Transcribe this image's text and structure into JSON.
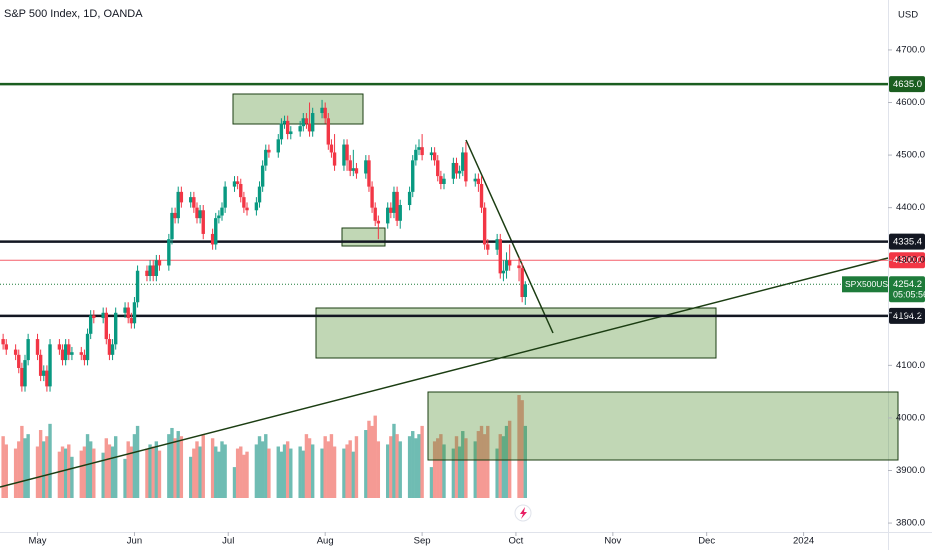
{
  "chart_data": {
    "type": "candlestick",
    "title": "S&P 500 Index, 1D, OANDA",
    "currency": "USD",
    "up_color": "#089981",
    "down_color": "#f23645",
    "volume_up_color": "#6fbcb3",
    "volume_down_color": "#f59a94",
    "ylim": [
      3783,
      4795
    ],
    "yticks": [
      {
        "value": 3800,
        "label": "3800.0"
      },
      {
        "value": 3900,
        "label": "3900.0"
      },
      {
        "value": 4000,
        "label": "4000.0"
      },
      {
        "value": 4100,
        "label": "4100.0"
      },
      {
        "value": 4200,
        "label": "4200.0"
      },
      {
        "value": 4300,
        "label": "4300.0"
      },
      {
        "value": 4400,
        "label": "4400.0"
      },
      {
        "value": 4500,
        "label": "4500.0"
      },
      {
        "value": 4600,
        "label": "4600.0"
      },
      {
        "value": 4700,
        "label": "4700.0"
      }
    ],
    "xlim": [
      "2023-04-19",
      "2024-01-28"
    ],
    "xticks": [
      {
        "value": "2023-05-01",
        "label": "May"
      },
      {
        "value": "2023-06-01",
        "label": "Jun"
      },
      {
        "value": "2023-07-01",
        "label": "Jul"
      },
      {
        "value": "2023-08-01",
        "label": "Aug"
      },
      {
        "value": "2023-09-01",
        "label": "Sep"
      },
      {
        "value": "2023-10-01",
        "label": "Oct"
      },
      {
        "value": "2023-11-01",
        "label": "Nov"
      },
      {
        "value": "2023-12-01",
        "label": "Dec"
      },
      {
        "value": "2024-01-01",
        "label": "2024"
      }
    ],
    "levels": [
      {
        "value": 4635,
        "label": "4635.0",
        "color": "#1b5e20"
      },
      {
        "value": 4335.4,
        "label": "4335.4",
        "color": "#131722"
      },
      {
        "value": 4300,
        "label": "4300.0",
        "color": "#f23645"
      },
      {
        "value": 4194.2,
        "label": "4194.2",
        "color": "#131722"
      }
    ],
    "current": {
      "name": "SPX500USD",
      "value": 4254.2,
      "label": "4254.2",
      "countdown": "05:05:56",
      "color": "#1e7b3a"
    },
    "candles": [
      [
        "2023-04-20",
        4150,
        4160,
        4130,
        4140
      ],
      [
        "2023-04-21",
        4140,
        4150,
        4120,
        4130
      ],
      [
        "2023-04-24",
        4130,
        4140,
        4110,
        4120
      ],
      [
        "2023-04-25",
        4120,
        4130,
        4085,
        4095
      ],
      [
        "2023-04-26",
        4095,
        4105,
        4050,
        4060
      ],
      [
        "2023-04-27",
        4060,
        4120,
        4050,
        4110
      ],
      [
        "2023-04-28",
        4110,
        4160,
        4100,
        4150
      ],
      [
        "2023-05-01",
        4150,
        4160,
        4110,
        4120
      ],
      [
        "2023-05-02",
        4120,
        4130,
        4070,
        4080
      ],
      [
        "2023-05-03",
        4080,
        4100,
        4070,
        4090
      ],
      [
        "2023-05-04",
        4090,
        4100,
        4050,
        4060
      ],
      [
        "2023-05-05",
        4060,
        4150,
        4050,
        4140
      ],
      [
        "2023-05-08",
        4140,
        4150,
        4120,
        4130
      ],
      [
        "2023-05-09",
        4130,
        4140,
        4100,
        4110
      ],
      [
        "2023-05-10",
        4110,
        4150,
        4100,
        4140
      ],
      [
        "2023-05-11",
        4140,
        4150,
        4110,
        4120
      ],
      [
        "2023-05-12",
        4120,
        4135,
        4110,
        4125
      ],
      [
        "2023-05-15",
        4125,
        4135,
        4110,
        4120
      ],
      [
        "2023-05-16",
        4120,
        4130,
        4100,
        4110
      ],
      [
        "2023-05-17",
        4110,
        4170,
        4100,
        4160
      ],
      [
        "2023-05-18",
        4160,
        4205,
        4150,
        4195
      ],
      [
        "2023-05-19",
        4195,
        4205,
        4180,
        4190
      ],
      [
        "2023-05-22",
        4190,
        4210,
        4180,
        4200
      ],
      [
        "2023-05-23",
        4200,
        4210,
        4140,
        4150
      ],
      [
        "2023-05-24",
        4150,
        4160,
        4110,
        4120
      ],
      [
        "2023-05-25",
        4120,
        4150,
        4110,
        4140
      ],
      [
        "2023-05-26",
        4140,
        4210,
        4130,
        4200
      ],
      [
        "2023-05-29",
        4200,
        4220,
        4190,
        4210
      ],
      [
        "2023-05-30",
        4210,
        4220,
        4180,
        4190
      ],
      [
        "2023-05-31",
        4190,
        4200,
        4170,
        4180
      ],
      [
        "2023-06-01",
        4180,
        4230,
        4170,
        4220
      ],
      [
        "2023-06-02",
        4220,
        4290,
        4210,
        4280
      ],
      [
        "2023-06-05",
        4280,
        4290,
        4260,
        4270
      ],
      [
        "2023-06-06",
        4270,
        4300,
        4260,
        4290
      ],
      [
        "2023-06-07",
        4290,
        4300,
        4260,
        4270
      ],
      [
        "2023-06-08",
        4270,
        4310,
        4260,
        4300
      ],
      [
        "2023-06-09",
        4300,
        4310,
        4280,
        4290
      ],
      [
        "2023-06-12",
        4290,
        4350,
        4280,
        4340
      ],
      [
        "2023-06-13",
        4340,
        4400,
        4330,
        4390
      ],
      [
        "2023-06-14",
        4390,
        4400,
        4370,
        4380
      ],
      [
        "2023-06-15",
        4380,
        4440,
        4370,
        4430
      ],
      [
        "2023-06-16",
        4430,
        4440,
        4400,
        4410
      ],
      [
        "2023-06-19",
        4410,
        4430,
        4400,
        4420
      ],
      [
        "2023-06-20",
        4420,
        4430,
        4390,
        4400
      ],
      [
        "2023-06-21",
        4400,
        4410,
        4370,
        4380
      ],
      [
        "2023-06-22",
        4380,
        4405,
        4370,
        4395
      ],
      [
        "2023-06-23",
        4395,
        4405,
        4340,
        4350
      ],
      [
        "2023-06-26",
        4350,
        4360,
        4320,
        4330
      ],
      [
        "2023-06-27",
        4330,
        4390,
        4320,
        4380
      ],
      [
        "2023-06-28",
        4380,
        4395,
        4370,
        4385
      ],
      [
        "2023-06-29",
        4385,
        4410,
        4375,
        4400
      ],
      [
        "2023-06-30",
        4400,
        4450,
        4390,
        4440
      ],
      [
        "2023-07-03",
        4440,
        4460,
        4430,
        4450
      ],
      [
        "2023-07-04",
        4450,
        4460,
        4435,
        4445
      ],
      [
        "2023-07-05",
        4445,
        4455,
        4410,
        4420
      ],
      [
        "2023-07-06",
        4420,
        4430,
        4390,
        4400
      ],
      [
        "2023-07-07",
        4400,
        4410,
        4385,
        4395
      ],
      [
        "2023-07-10",
        4395,
        4420,
        4385,
        4410
      ],
      [
        "2023-07-11",
        4410,
        4450,
        4400,
        4440
      ],
      [
        "2023-07-12",
        4440,
        4490,
        4430,
        4480
      ],
      [
        "2023-07-13",
        4480,
        4520,
        4470,
        4510
      ],
      [
        "2023-07-14",
        4510,
        4520,
        4495,
        4505
      ],
      [
        "2023-07-17",
        4505,
        4540,
        4495,
        4530
      ],
      [
        "2023-07-18",
        4530,
        4570,
        4520,
        4560
      ],
      [
        "2023-07-19",
        4560,
        4575,
        4550,
        4565
      ],
      [
        "2023-07-20",
        4565,
        4575,
        4530,
        4540
      ],
      [
        "2023-07-21",
        4540,
        4555,
        4530,
        4545
      ],
      [
        "2023-07-24",
        4545,
        4565,
        4535,
        4555
      ],
      [
        "2023-07-25",
        4555,
        4580,
        4545,
        4570
      ],
      [
        "2023-07-26",
        4570,
        4580,
        4550,
        4560
      ],
      [
        "2023-07-27",
        4560,
        4600,
        4535,
        4545
      ],
      [
        "2023-07-28",
        4545,
        4590,
        4535,
        4580
      ],
      [
        "2023-07-31",
        4580,
        4605,
        4570,
        4590
      ],
      [
        "2023-08-01",
        4590,
        4600,
        4560,
        4570
      ],
      [
        "2023-08-02",
        4570,
        4580,
        4510,
        4520
      ],
      [
        "2023-08-03",
        4520,
        4530,
        4495,
        4505
      ],
      [
        "2023-08-04",
        4505,
        4540,
        4470,
        4480
      ],
      [
        "2023-08-07",
        4480,
        4530,
        4470,
        4520
      ],
      [
        "2023-08-08",
        4520,
        4530,
        4470,
        4490
      ],
      [
        "2023-08-09",
        4490,
        4500,
        4460,
        4470
      ],
      [
        "2023-08-10",
        4470,
        4510,
        4460,
        4475
      ],
      [
        "2023-08-11",
        4475,
        4485,
        4455,
        4465
      ],
      [
        "2023-08-14",
        4465,
        4500,
        4455,
        4490
      ],
      [
        "2023-08-15",
        4490,
        4500,
        4430,
        4440
      ],
      [
        "2023-08-16",
        4440,
        4450,
        4390,
        4400
      ],
      [
        "2023-08-17",
        4400,
        4410,
        4365,
        4375
      ],
      [
        "2023-08-18",
        4375,
        4385,
        4340,
        4370
      ],
      [
        "2023-08-21",
        4370,
        4410,
        4360,
        4400
      ],
      [
        "2023-08-22",
        4400,
        4410,
        4380,
        4390
      ],
      [
        "2023-08-23",
        4390,
        4440,
        4380,
        4430
      ],
      [
        "2023-08-24",
        4430,
        4440,
        4365,
        4375
      ],
      [
        "2023-08-25",
        4375,
        4415,
        4360,
        4405
      ],
      [
        "2023-08-28",
        4405,
        4440,
        4395,
        4430
      ],
      [
        "2023-08-29",
        4430,
        4500,
        4420,
        4490
      ],
      [
        "2023-08-30",
        4490,
        4520,
        4480,
        4510
      ],
      [
        "2023-08-31",
        4510,
        4530,
        4500,
        4515
      ],
      [
        "2023-09-01",
        4515,
        4540,
        4490,
        4500
      ],
      [
        "2023-09-04",
        4500,
        4515,
        4490,
        4505
      ],
      [
        "2023-09-05",
        4505,
        4515,
        4480,
        4490
      ],
      [
        "2023-09-06",
        4490,
        4500,
        4450,
        4460
      ],
      [
        "2023-09-07",
        4460,
        4470,
        4435,
        4445
      ],
      [
        "2023-09-08",
        4445,
        4465,
        4435,
        4455
      ],
      [
        "2023-09-11",
        4455,
        4495,
        4445,
        4485
      ],
      [
        "2023-09-12",
        4485,
        4495,
        4455,
        4465
      ],
      [
        "2023-09-13",
        4465,
        4480,
        4455,
        4470
      ],
      [
        "2023-09-14",
        4470,
        4515,
        4460,
        4505
      ],
      [
        "2023-09-15",
        4505,
        4525,
        4440,
        4450
      ],
      [
        "2023-09-18",
        4450,
        4465,
        4440,
        4455
      ],
      [
        "2023-09-19",
        4455,
        4465,
        4430,
        4445
      ],
      [
        "2023-09-20",
        4445,
        4460,
        4390,
        4400
      ],
      [
        "2023-09-21",
        4400,
        4410,
        4320,
        4330
      ],
      [
        "2023-09-22",
        4330,
        4340,
        4310,
        4320
      ],
      [
        "2023-09-25",
        4320,
        4350,
        4310,
        4340
      ],
      [
        "2023-09-26",
        4340,
        4350,
        4265,
        4275
      ],
      [
        "2023-09-27",
        4275,
        4300,
        4260,
        4280
      ],
      [
        "2023-09-28",
        4280,
        4315,
        4265,
        4300
      ],
      [
        "2023-09-29",
        4300,
        4330,
        4280,
        4290
      ],
      [
        "2023-10-02",
        4290,
        4305,
        4260,
        4285
      ],
      [
        "2023-10-03",
        4285,
        4295,
        4220,
        4230
      ],
      [
        "2023-10-04",
        4230,
        4260,
        4215,
        4254.2
      ]
    ],
    "volume": [
      60,
      52,
      48,
      55,
      70,
      58,
      62,
      50,
      66,
      55,
      60,
      72,
      45,
      50,
      48,
      52,
      40,
      46,
      50,
      62,
      55,
      48,
      44,
      58,
      52,
      50,
      60,
      38,
      55,
      50,
      62,
      70,
      48,
      52,
      50,
      55,
      46,
      62,
      68,
      58,
      65,
      60,
      40,
      48,
      55,
      50,
      62,
      58,
      50,
      45,
      55,
      52,
      30,
      48,
      50,
      42,
      45,
      52,
      60,
      55,
      62,
      48,
      50,
      45,
      52,
      55,
      48,
      50,
      46,
      62,
      58,
      52,
      48,
      60,
      55,
      62,
      50,
      48,
      52,
      56,
      45,
      60,
      66,
      75,
      70,
      80,
      55,
      52,
      60,
      72,
      62,
      55,
      60,
      65,
      58,
      62,
      70,
      30,
      55,
      58,
      62,
      52,
      48,
      60,
      50,
      65,
      58,
      55,
      65,
      70,
      62,
      70,
      48,
      62,
      60,
      70,
      75,
      100,
      95,
      70
    ]
  }
}
